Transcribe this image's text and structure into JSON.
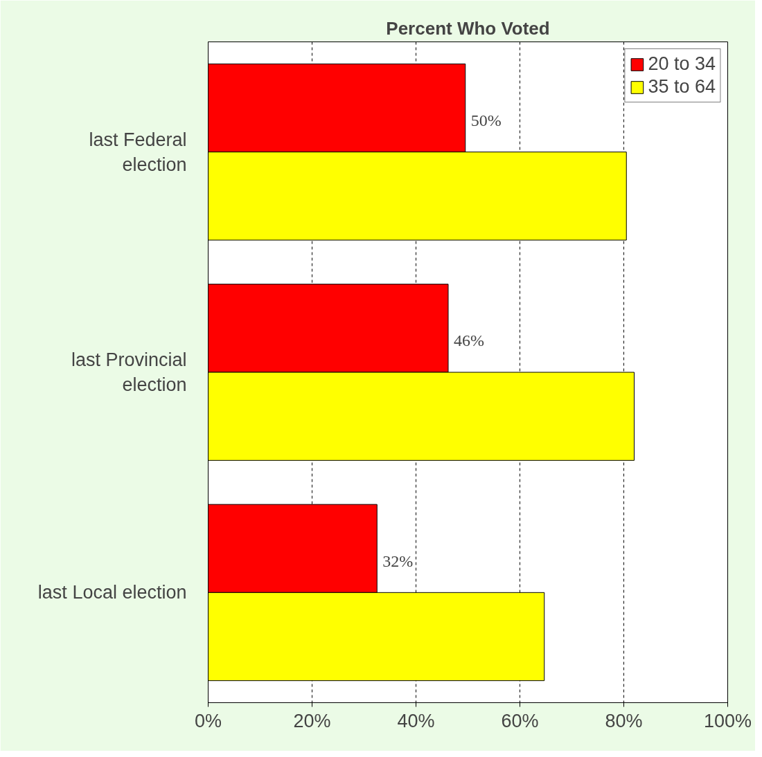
{
  "chart_data": {
    "type": "bar",
    "orientation": "horizontal",
    "title": "Percent Who Voted",
    "categories": [
      "last Federal election",
      "last Provincial election",
      "last Local election"
    ],
    "series": [
      {
        "name": "20 to 34",
        "color": "#ff0000",
        "values": [
          49.5,
          46.2,
          32.5
        ],
        "value_labels": [
          "50%",
          "46%",
          "32%"
        ]
      },
      {
        "name": "35 to 64",
        "color": "#ffff00",
        "values": [
          80.5,
          82,
          64.7
        ]
      }
    ],
    "xlim": [
      0,
      100
    ],
    "xticks": [
      {
        "value": 0,
        "label": "0%"
      },
      {
        "value": 20,
        "label": "20%"
      },
      {
        "value": 40,
        "label": "40%"
      },
      {
        "value": 60,
        "label": "60%"
      },
      {
        "value": 80,
        "label": "80%"
      },
      {
        "value": 100,
        "label": "100%"
      }
    ],
    "grid": "x",
    "legend": "top right"
  }
}
